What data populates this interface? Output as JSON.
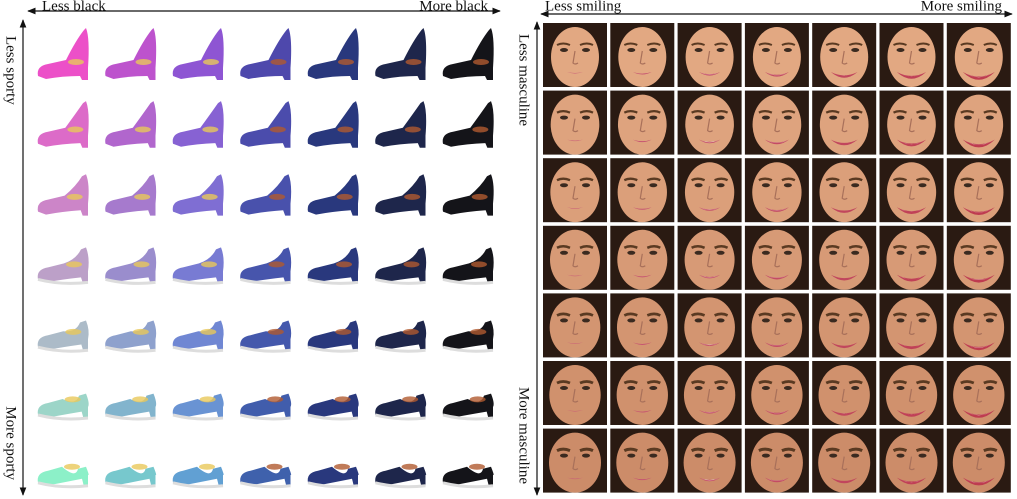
{
  "panels": [
    {
      "x_axis": {
        "left": "Less black",
        "right": "More black"
      },
      "y_axis": {
        "top": "Less sporty",
        "bottom": "More sporty"
      }
    },
    {
      "x_axis": {
        "left": "Less smiling",
        "right": "More smiling"
      },
      "y_axis": {
        "top": "Less masculine",
        "bottom": "More masculine"
      }
    }
  ]
}
